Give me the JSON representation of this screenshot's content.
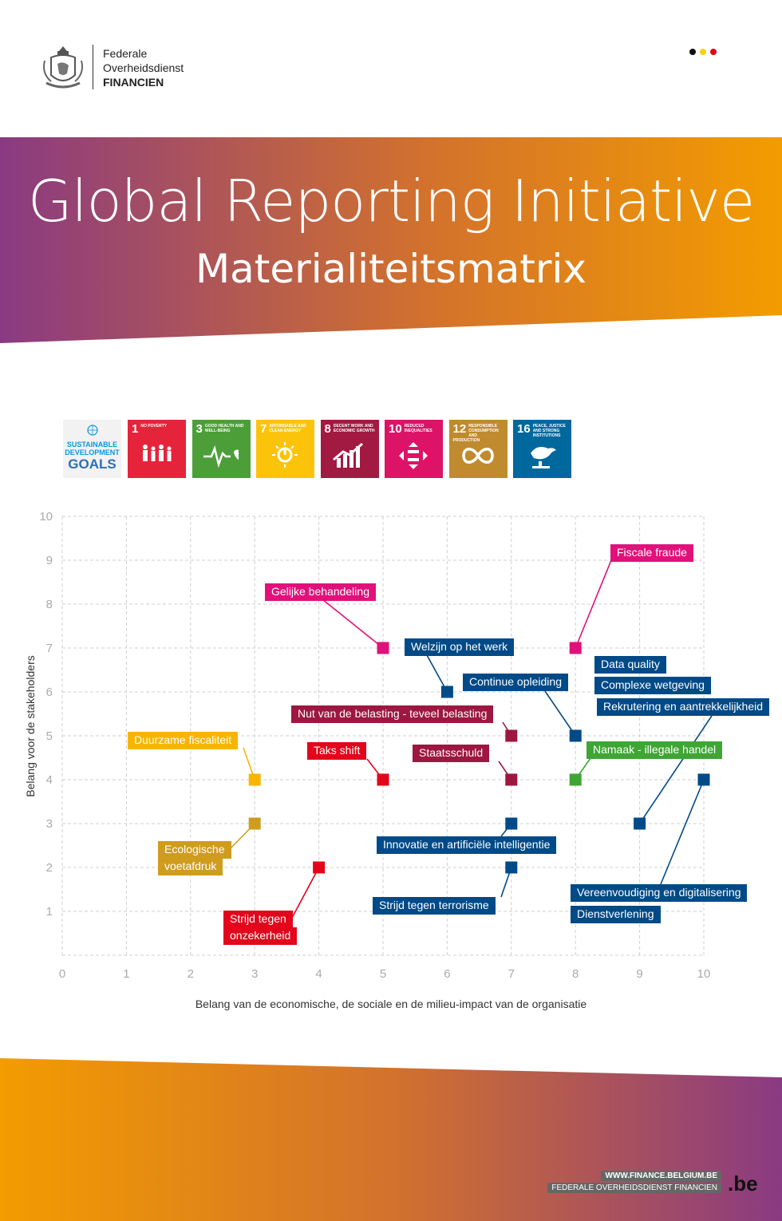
{
  "header": {
    "org_line1": "Federale",
    "org_line2": "Overheidsdienst",
    "org_line3": "FINANCIEN",
    "flag_colors": [
      "#111111",
      "#f7d117",
      "#e30613"
    ]
  },
  "title": "Global Reporting Initiative",
  "subtitle": "Materialiteitsmatrix",
  "sdg": {
    "logo_line1": "SUSTAINABLE",
    "logo_line2": "DEVELOPMENT",
    "logo_line3": "GOALS",
    "goals": [
      {
        "num": "1",
        "label": "NO POVERTY",
        "color": "#e5243b",
        "icon": "family-icon"
      },
      {
        "num": "3",
        "label": "GOOD HEALTH AND WELL-BEING",
        "color": "#4c9f38",
        "icon": "heartbeat-icon"
      },
      {
        "num": "7",
        "label": "AFFORDABLE AND CLEAN ENERGY",
        "color": "#fcc30b",
        "icon": "sun-power-icon"
      },
      {
        "num": "8",
        "label": "DECENT WORK AND ECONOMIC GROWTH",
        "color": "#a21942",
        "icon": "growth-chart-icon"
      },
      {
        "num": "10",
        "label": "REDUCED INEQUALITIES",
        "color": "#dd1367",
        "icon": "equality-icon"
      },
      {
        "num": "12",
        "label": "RESPONSIBLE CONSUMPTION AND PRODUCTION",
        "color": "#bf8b2e",
        "icon": "infinity-icon"
      },
      {
        "num": "16",
        "label": "PEACE, JUSTICE AND STRONG INSTITUTIONS",
        "color": "#00689d",
        "icon": "dove-gavel-icon"
      }
    ]
  },
  "chart_data": {
    "type": "scatter",
    "xlabel": "Belang van de economische, de sociale en de milieu-impact van de organisatie",
    "ylabel": "Belang voor de stakeholders",
    "xlim": [
      0,
      10
    ],
    "ylim": [
      0,
      10
    ],
    "xticks": [
      "0",
      "1",
      "2",
      "3",
      "4",
      "5",
      "6",
      "7",
      "8",
      "9",
      "10"
    ],
    "yticks": [
      "1",
      "2",
      "3",
      "4",
      "5",
      "6",
      "7",
      "8",
      "9",
      "10"
    ],
    "grid": true,
    "points": [
      {
        "x": 8,
        "y": 7,
        "color": "#e0117a",
        "labels": [
          "Fiscale fraude"
        ]
      },
      {
        "x": 5,
        "y": 7,
        "color": "#e0117a",
        "labels": [
          "Gelijke behandeling"
        ]
      },
      {
        "x": 6,
        "y": 6,
        "color": "#004a87",
        "labels": [
          "Welzijn op het werk"
        ]
      },
      {
        "x": 8,
        "y": 5,
        "color": "#004a87",
        "labels": [
          "Continue opleiding"
        ]
      },
      {
        "x": 7,
        "y": 5,
        "color": "#9d1740",
        "labels": [
          "Nut van de belasting - teveel belasting"
        ]
      },
      {
        "x": 3,
        "y": 4,
        "color": "#f7b500",
        "labels": [
          "Duurzame fiscaliteit"
        ]
      },
      {
        "x": 5,
        "y": 4,
        "color": "#e3051b",
        "labels": [
          "Taks shift"
        ]
      },
      {
        "x": 7,
        "y": 4,
        "color": "#9d1740",
        "labels": [
          "Staatsschuld"
        ]
      },
      {
        "x": 8,
        "y": 4,
        "color": "#3fa535",
        "labels": [
          "Namaak - illegale handel"
        ]
      },
      {
        "x": 9,
        "y": 3,
        "color": "#004a87",
        "labels": [
          "Data quality",
          "Complexe wetgeving",
          "Rekrutering en aantrekkelijkheid"
        ]
      },
      {
        "x": 10,
        "y": 4,
        "color": "#004a87",
        "labels": [
          "Vereenvoudiging en digitalisering",
          "Dienstverlening"
        ]
      },
      {
        "x": 3,
        "y": 3,
        "color": "#cf9c1e",
        "labels": [
          "Ecologische",
          "voetafdruk"
        ]
      },
      {
        "x": 7,
        "y": 3,
        "color": "#004a87",
        "labels": [
          "Innovatie en artificiële intelligentie"
        ]
      },
      {
        "x": 7,
        "y": 2,
        "color": "#004a87",
        "labels": [
          "Strijd tegen terrorisme"
        ]
      },
      {
        "x": 4,
        "y": 2,
        "color": "#e3051b",
        "labels": [
          "Strijd tegen",
          "onzekerheid"
        ]
      }
    ]
  },
  "footer": {
    "url": "WWW.FINANCE.BELGIUM.BE",
    "org": "FEDERALE OVERHEIDSDIENST FINANCIEN",
    "be_logo": ".be"
  }
}
